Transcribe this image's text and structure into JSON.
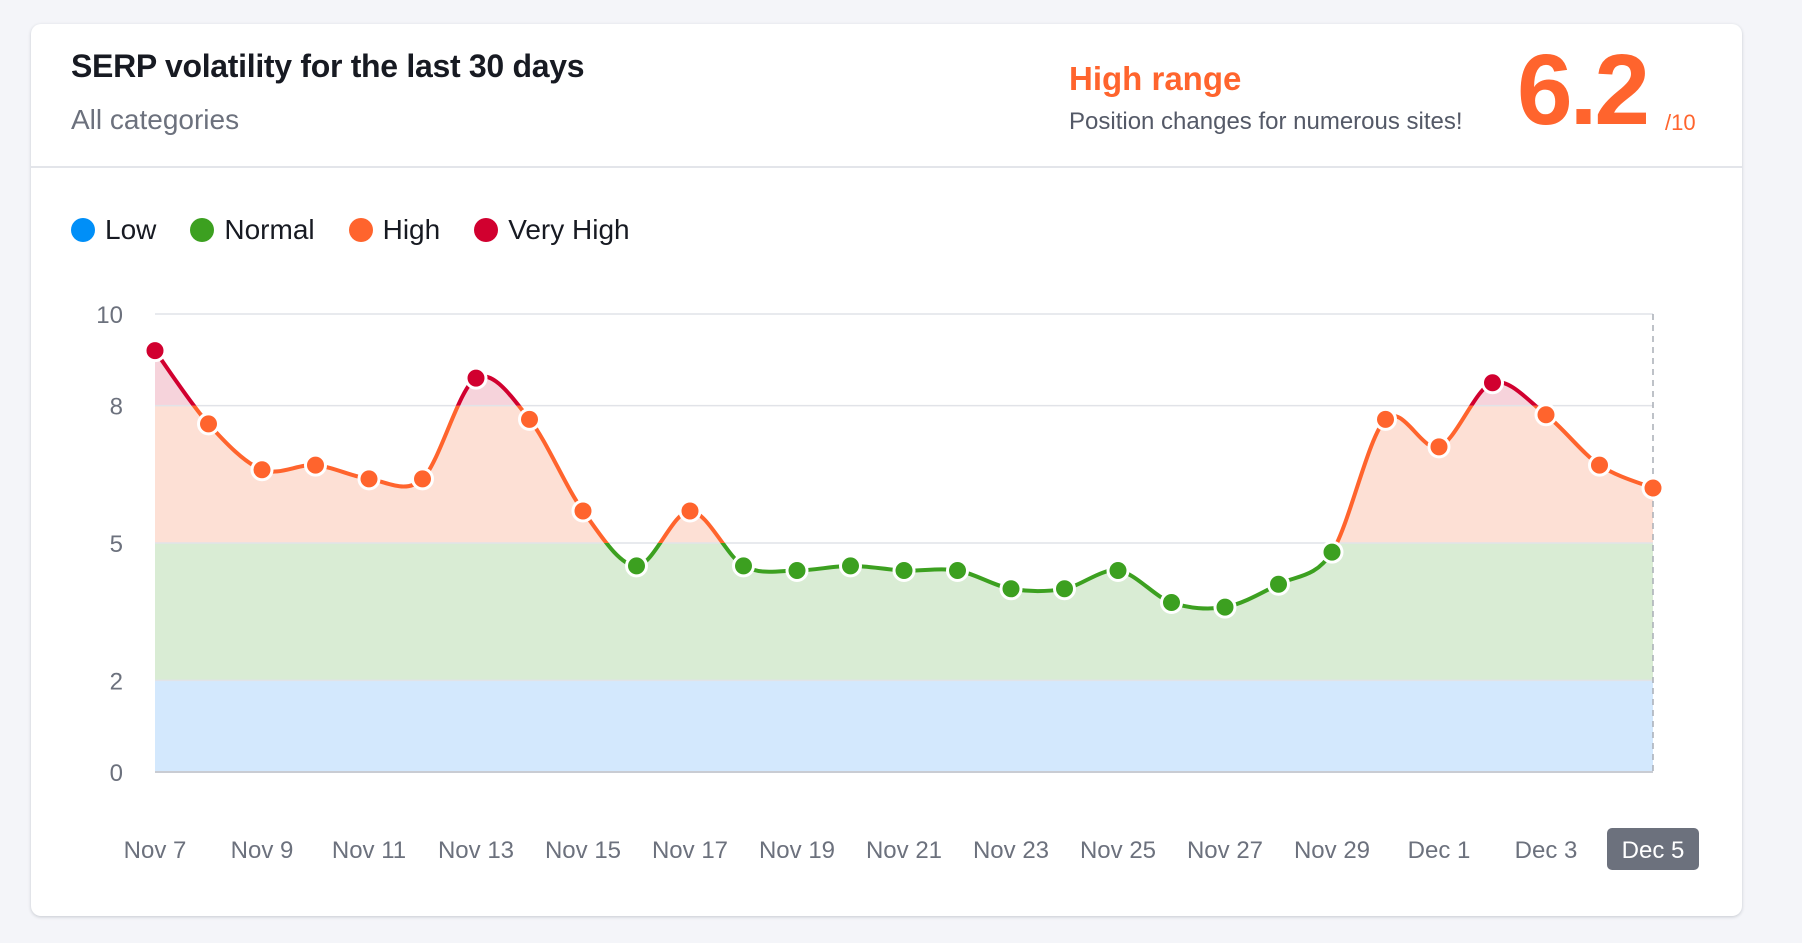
{
  "header": {
    "title": "SERP volatility for the last 30 days",
    "subtitle": "All categories",
    "range_label": "High range",
    "range_description": "Position changes for numerous sites!",
    "score": "6.2",
    "score_max": "/10"
  },
  "legend": [
    {
      "label": "Low",
      "color": "#008ff8"
    },
    {
      "label": "Normal",
      "color": "#3ca020"
    },
    {
      "label": "High",
      "color": "#ff642d"
    },
    {
      "label": "Very High",
      "color": "#d1002f"
    }
  ],
  "chart_data": {
    "type": "line",
    "title": "SERP volatility for the last 30 days",
    "xlabel": "",
    "ylabel": "",
    "ylim": [
      0,
      10
    ],
    "y_ticks": [
      0,
      2,
      5,
      8,
      10
    ],
    "x_tick_labels": [
      "Nov 7",
      "Nov 9",
      "Nov 11",
      "Nov 13",
      "Nov 15",
      "Nov 17",
      "Nov 19",
      "Nov 21",
      "Nov 23",
      "Nov 25",
      "Nov 27",
      "Nov 29",
      "Dec 1",
      "Dec 3",
      "Dec 5"
    ],
    "selected_label": "Dec 5",
    "bands": [
      {
        "name": "Low",
        "from": 0,
        "to": 2,
        "color": "#d3e8fd"
      },
      {
        "name": "Normal",
        "from": 2,
        "to": 5,
        "color": "#d9ecd4"
      },
      {
        "name": "High",
        "from": 5,
        "to": 8,
        "color": "#fde0d5"
      },
      {
        "name": "Very High",
        "from": 8,
        "to": 10,
        "color": "#f6d3db"
      }
    ],
    "x": [
      "Nov 7",
      "Nov 8",
      "Nov 9",
      "Nov 10",
      "Nov 11",
      "Nov 12",
      "Nov 13",
      "Nov 14",
      "Nov 15",
      "Nov 16",
      "Nov 17",
      "Nov 18",
      "Nov 19",
      "Nov 20",
      "Nov 21",
      "Nov 22",
      "Nov 23",
      "Nov 24",
      "Nov 25",
      "Nov 26",
      "Nov 27",
      "Nov 28",
      "Nov 29",
      "Nov 30",
      "Dec 1",
      "Dec 2",
      "Dec 3",
      "Dec 4",
      "Dec 5"
    ],
    "values": [
      9.2,
      7.6,
      6.6,
      6.7,
      6.4,
      6.4,
      8.6,
      7.7,
      5.7,
      4.5,
      5.7,
      4.5,
      4.4,
      4.5,
      4.4,
      4.4,
      4.0,
      4.0,
      4.4,
      3.7,
      3.6,
      4.1,
      4.8,
      7.7,
      7.1,
      8.5,
      7.8,
      6.7,
      6.2
    ],
    "grid": true,
    "legend_position": "top-left"
  }
}
